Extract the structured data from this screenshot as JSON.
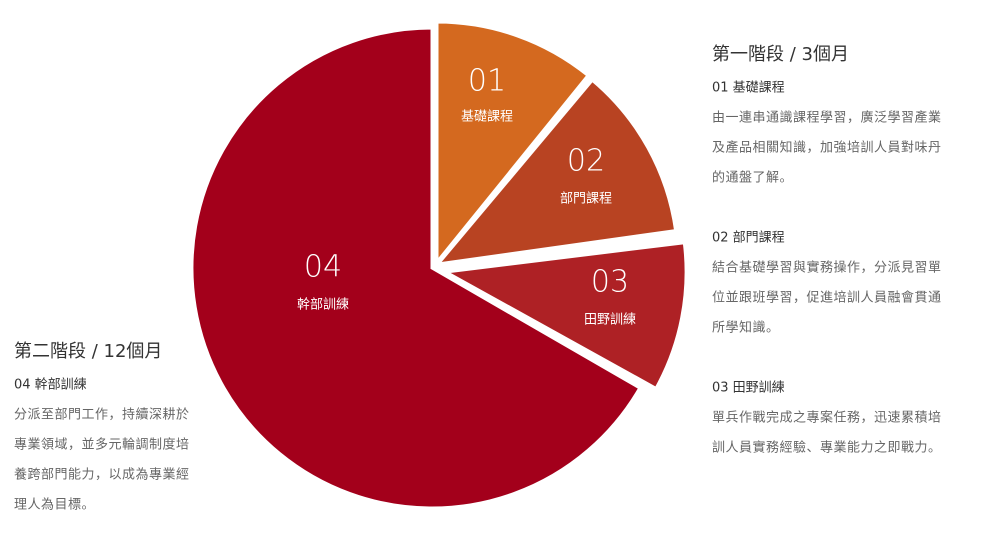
{
  "slices": [
    {
      "number": "01",
      "label": "基礎課程"
    },
    {
      "number": "02",
      "label": "部門課程"
    },
    {
      "number": "03",
      "label": "田野訓練"
    },
    {
      "number": "04",
      "label": "幹部訓練"
    }
  ],
  "stage_one": {
    "title": "第一階段 / 3個月",
    "items": [
      {
        "heading": "01  基礎課程",
        "lines": [
          "由一連串通識課程學習，廣泛學習產業",
          "及產品相關知識，加強培訓人員對味丹",
          "的通盤了解。"
        ]
      },
      {
        "heading": "02  部門課程",
        "lines": [
          "結合基礎學習與實務操作，分派見習單",
          "位並跟班學習，促進培訓人員融會貫通",
          "所學知識。"
        ]
      },
      {
        "heading": "03  田野訓練",
        "lines": [
          "單兵作戰完成之專案任務，迅速累積培",
          "訓人員實務經驗、專業能力之即戰力。"
        ]
      }
    ]
  },
  "stage_two": {
    "title": "第二階段 / 12個月",
    "items": [
      {
        "heading": "04  幹部訓練",
        "lines": [
          "分派至部門工作，持續深耕於",
          "專業領域，並多元輪調制度培",
          "養跨部門能力，以成為專業經",
          "理人為目標。"
        ]
      }
    ]
  }
}
